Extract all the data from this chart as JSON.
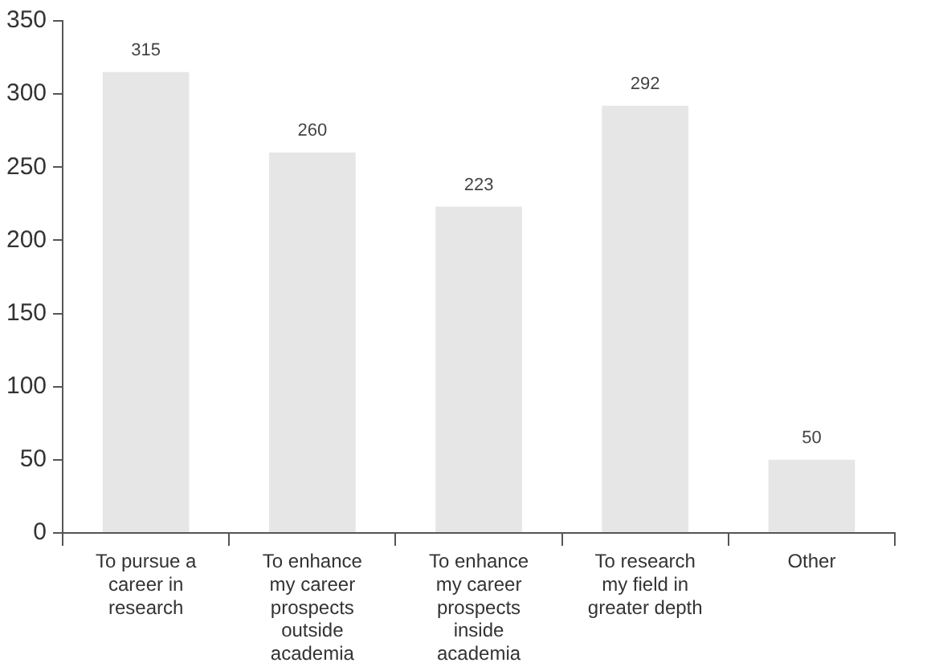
{
  "chart_data": {
    "type": "bar",
    "categories": [
      "To pursue a career in research",
      "To enhance my career prospects outside academia",
      "To enhance my career prospects inside academia",
      "To research my field in greater depth",
      "Other"
    ],
    "values": [
      315,
      260,
      223,
      292,
      50
    ],
    "color": "#e6e6e6",
    "ylim": [
      0,
      350
    ],
    "yticks": [
      0,
      50,
      100,
      150,
      200,
      250,
      300,
      350
    ],
    "grid": false,
    "data_labels": true,
    "legend": false
  }
}
